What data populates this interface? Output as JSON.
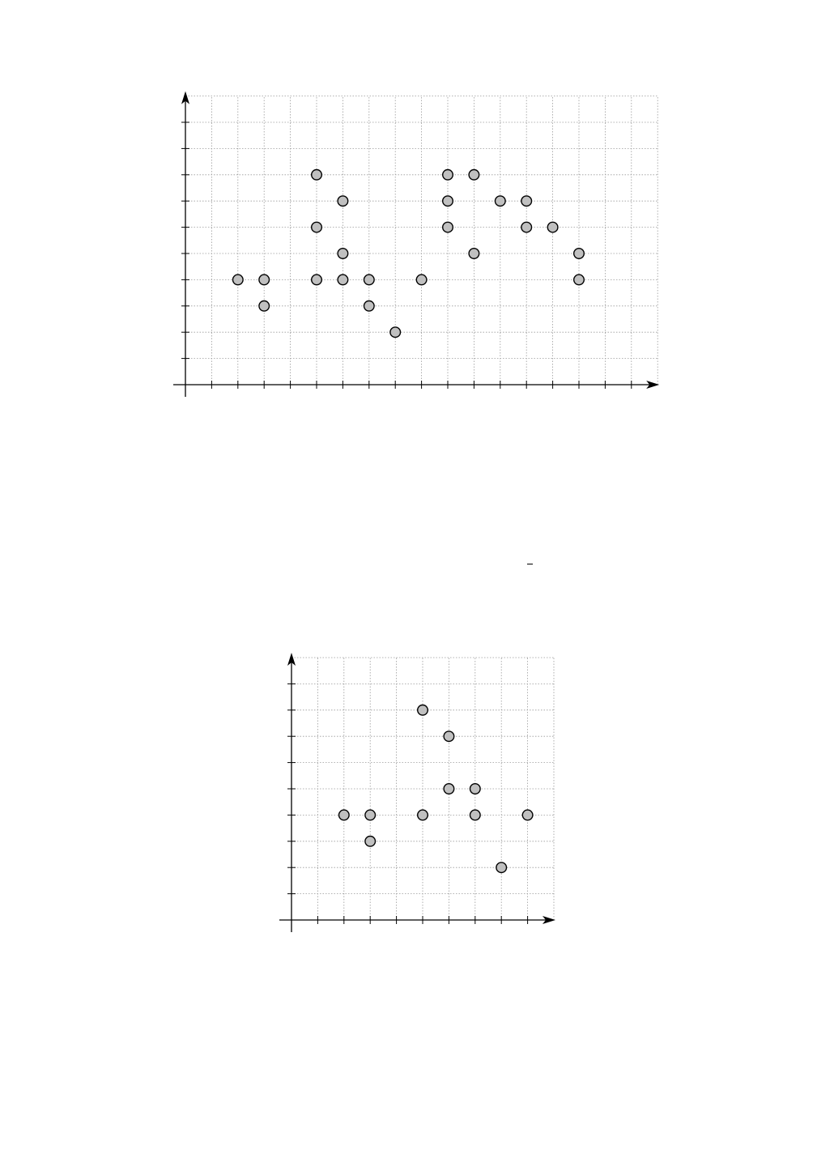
{
  "chart_data": [
    {
      "type": "scatter",
      "title": "",
      "xlabel": "",
      "ylabel": "",
      "xlim": [
        0,
        18
      ],
      "ylim": [
        0,
        11
      ],
      "grid": true,
      "colors": {
        "point_fill": "#c0c0c0",
        "point_stroke": "#000000",
        "grid": "#9a9a9a",
        "axis": "#000000"
      },
      "points": [
        {
          "x": 2,
          "y": 4
        },
        {
          "x": 3,
          "y": 4
        },
        {
          "x": 3,
          "y": 3
        },
        {
          "x": 5,
          "y": 8
        },
        {
          "x": 5,
          "y": 6
        },
        {
          "x": 5,
          "y": 4
        },
        {
          "x": 6,
          "y": 7
        },
        {
          "x": 6,
          "y": 5
        },
        {
          "x": 6,
          "y": 4
        },
        {
          "x": 7,
          "y": 4
        },
        {
          "x": 7,
          "y": 3
        },
        {
          "x": 8,
          "y": 2
        },
        {
          "x": 9,
          "y": 4
        },
        {
          "x": 10,
          "y": 8
        },
        {
          "x": 10,
          "y": 7
        },
        {
          "x": 10,
          "y": 6
        },
        {
          "x": 11,
          "y": 8
        },
        {
          "x": 11,
          "y": 5
        },
        {
          "x": 12,
          "y": 7
        },
        {
          "x": 13,
          "y": 7
        },
        {
          "x": 13,
          "y": 6
        },
        {
          "x": 14,
          "y": 6
        },
        {
          "x": 15,
          "y": 5
        },
        {
          "x": 15,
          "y": 4
        }
      ]
    },
    {
      "type": "scatter",
      "title": "",
      "xlabel": "",
      "ylabel": "",
      "xlim": [
        0,
        10
      ],
      "ylim": [
        0,
        10
      ],
      "grid": true,
      "colors": {
        "point_fill": "#c0c0c0",
        "point_stroke": "#000000",
        "grid": "#9a9a9a",
        "axis": "#000000"
      },
      "points": [
        {
          "x": 2,
          "y": 4
        },
        {
          "x": 3,
          "y": 4
        },
        {
          "x": 3,
          "y": 3
        },
        {
          "x": 5,
          "y": 8
        },
        {
          "x": 5,
          "y": 4
        },
        {
          "x": 6,
          "y": 7
        },
        {
          "x": 6,
          "y": 5
        },
        {
          "x": 7,
          "y": 5
        },
        {
          "x": 7,
          "y": 4
        },
        {
          "x": 8,
          "y": 2
        },
        {
          "x": 9,
          "y": 4
        }
      ]
    }
  ]
}
